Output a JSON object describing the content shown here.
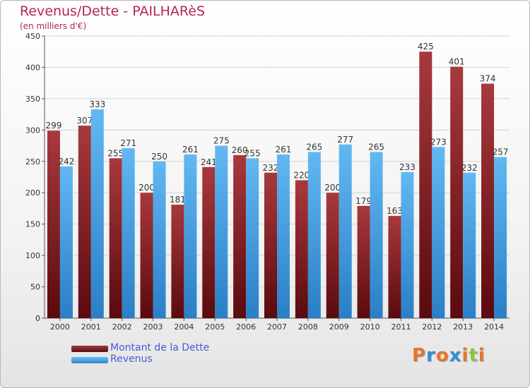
{
  "header": {
    "title": "Revenus/Dette - PAILHARèS",
    "subtitle": "(en milliers d'€)"
  },
  "chart_data": {
    "type": "bar",
    "categories": [
      "2000",
      "2001",
      "2002",
      "2003",
      "2004",
      "2005",
      "2006",
      "2007",
      "2008",
      "2009",
      "2010",
      "2011",
      "2012",
      "2013",
      "2014"
    ],
    "series": [
      {
        "name": "Montant de la Dette",
        "color": "#7a1e22",
        "values": [
          299,
          307,
          255,
          200,
          181,
          241,
          260,
          232,
          220,
          200,
          179,
          163,
          425,
          401,
          374
        ]
      },
      {
        "name": "Revenus",
        "color": "#3fa0e6",
        "values": [
          242,
          333,
          271,
          250,
          261,
          275,
          255,
          261,
          265,
          277,
          265,
          233,
          273,
          232,
          257
        ]
      }
    ],
    "ylim": [
      0,
      450
    ],
    "yticks": [
      0,
      50,
      100,
      150,
      200,
      250,
      300,
      350,
      400,
      450
    ],
    "grid": true,
    "legend_position": "bottom-left"
  },
  "legend": {
    "items": [
      {
        "label": "Montant de la Dette",
        "color": "#7a1e22"
      },
      {
        "label": "Revenus",
        "color": "#3fa0e6"
      }
    ]
  },
  "logo": {
    "letters": [
      "P",
      "r",
      "o",
      "x",
      "i",
      "t",
      "i"
    ],
    "colors": [
      "#e8742a",
      "#2d8fd8",
      "#e8742a",
      "#2d8fd8",
      "#e8742a",
      "#8cc63f",
      "#e8742a"
    ]
  }
}
